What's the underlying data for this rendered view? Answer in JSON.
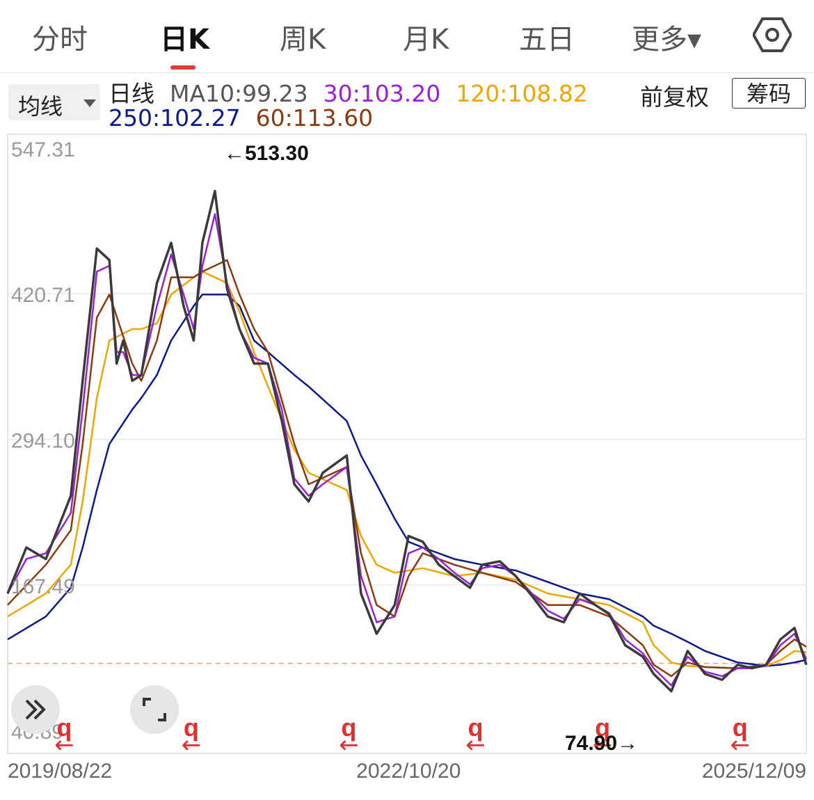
{
  "tabs": [
    {
      "label": "分时"
    },
    {
      "label": "日K"
    },
    {
      "label": "周K"
    },
    {
      "label": "月K"
    },
    {
      "label": "五日"
    },
    {
      "label": "更多▾"
    }
  ],
  "ma_selector": {
    "label": "均线"
  },
  "ma_legend": {
    "prefix": "日线",
    "ma10": "MA10:99.23",
    "ma30": "30:103.20",
    "ma120": "120:108.82",
    "ma250": "250:102.27",
    "ma60": "60:113.60"
  },
  "adjust_label": "前复权",
  "chips_button": "筹码",
  "colors": {
    "price": "#3a3a3a",
    "ma10": "#3a3a3a",
    "ma30": "#9b1fd6",
    "ma60": "#8b3a0f",
    "ma120": "#f0a500",
    "ma250": "#0a1a8a",
    "marker": "#e03030",
    "grid": "#e8e8e8"
  },
  "chart_data": {
    "type": "line",
    "y_ticks": [
      "547.31",
      "420.71",
      "294.10",
      "167.49",
      "40.89"
    ],
    "ylim": [
      40.89,
      547.31
    ],
    "x_ticks": [
      "2019/08/22",
      "2022/10/20",
      "2025/12/09"
    ],
    "xlim": [
      "2019/08/22",
      "2025/12/09"
    ],
    "annotations": {
      "high": "←513.30",
      "low": "74.90→"
    },
    "reference_line": 99.23,
    "marker_label": "q",
    "marker_arrow": "←",
    "marker_x": [
      "2020/02/01",
      "2021/02/01",
      "2022/05/01",
      "2023/05/01",
      "2024/05/01",
      "2025/06/01"
    ],
    "series": [
      {
        "name": "日线",
        "key": "price",
        "x": [
          "2019/08/22",
          "2019/10/15",
          "2019/12/10",
          "2020/02/20",
          "2020/03/25",
          "2020/05/05",
          "2020/06/10",
          "2020/07/01",
          "2020/07/20",
          "2020/08/15",
          "2020/09/10",
          "2020/10/25",
          "2020/12/05",
          "2021/01/10",
          "2021/02/08",
          "2021/03/05",
          "2021/04/10",
          "2021/05/15",
          "2021/06/20",
          "2021/08/01",
          "2021/09/10",
          "2021/10/20",
          "2021/11/25",
          "2022/01/05",
          "2022/02/15",
          "2022/04/25",
          "2022/06/05",
          "2022/07/20",
          "2022/09/10",
          "2022/10/20",
          "2022/11/30",
          "2023/01/15",
          "2023/03/01",
          "2023/04/15",
          "2023/05/20",
          "2023/07/10",
          "2023/08/25",
          "2023/10/10",
          "2023/11/25",
          "2024/01/10",
          "2024/02/25",
          "2024/04/10",
          "2024/05/20",
          "2024/07/05",
          "2024/08/25",
          "2024/09/25",
          "2024/11/15",
          "2025/01/01",
          "2025/02/20",
          "2025/04/10",
          "2025/05/25",
          "2025/07/05",
          "2025/08/15",
          "2025/09/25",
          "2025/11/05",
          "2025/12/09"
        ],
        "values": [
          160,
          200,
          190,
          245,
          345,
          460,
          450,
          360,
          380,
          345,
          350,
          430,
          465,
          410,
          380,
          465,
          510,
          425,
          390,
          360,
          360,
          310,
          255,
          240,
          265,
          280,
          160,
          125,
          150,
          210,
          205,
          185,
          175,
          165,
          185,
          188,
          175,
          158,
          140,
          135,
          160,
          150,
          142,
          115,
          105,
          90,
          75,
          110,
          90,
          85,
          98,
          95,
          98,
          120,
          130,
          98
        ]
      },
      {
        "name": "MA30",
        "key": "ma30",
        "x": [
          "2019/08/22",
          "2019/10/15",
          "2019/12/10",
          "2020/02/20",
          "2020/03/25",
          "2020/05/05",
          "2020/06/10",
          "2020/07/01",
          "2020/07/20",
          "2020/08/15",
          "2020/09/10",
          "2020/10/25",
          "2020/12/05",
          "2021/01/10",
          "2021/02/08",
          "2021/03/05",
          "2021/04/10",
          "2021/05/15",
          "2021/06/20",
          "2021/08/01",
          "2021/09/10",
          "2021/10/20",
          "2021/11/25",
          "2022/01/05",
          "2022/02/15",
          "2022/04/25",
          "2022/06/05",
          "2022/07/20",
          "2022/09/10",
          "2022/10/20",
          "2022/11/30",
          "2023/01/15",
          "2023/03/01",
          "2023/04/15",
          "2023/05/20",
          "2023/07/10",
          "2023/08/25",
          "2023/10/10",
          "2023/11/25",
          "2024/01/10",
          "2024/02/25",
          "2024/04/10",
          "2024/05/20",
          "2024/07/05",
          "2024/08/25",
          "2024/09/25",
          "2024/11/15",
          "2025/01/01",
          "2025/02/20",
          "2025/04/10",
          "2025/05/25",
          "2025/07/05",
          "2025/08/15",
          "2025/09/25",
          "2025/11/05",
          "2025/12/09"
        ],
        "values": [
          160,
          190,
          195,
          230,
          320,
          440,
          445,
          370,
          370,
          350,
          350,
          410,
          455,
          420,
          390,
          445,
          490,
          430,
          390,
          365,
          360,
          320,
          260,
          245,
          255,
          270,
          175,
          135,
          140,
          195,
          200,
          190,
          178,
          168,
          182,
          185,
          175,
          160,
          145,
          138,
          155,
          150,
          143,
          120,
          108,
          95,
          80,
          105,
          92,
          88,
          95,
          95,
          97,
          115,
          125,
          103
        ]
      },
      {
        "name": "MA60",
        "key": "ma60",
        "x": [
          "2019/08/22",
          "2019/12/10",
          "2020/02/20",
          "2020/03/25",
          "2020/05/05",
          "2020/06/10",
          "2020/08/15",
          "2020/09/10",
          "2020/10/25",
          "2020/12/05",
          "2021/02/08",
          "2021/03/05",
          "2021/05/15",
          "2021/06/20",
          "2021/08/01",
          "2021/09/10",
          "2021/11/25",
          "2022/01/05",
          "2022/04/25",
          "2022/06/05",
          "2022/07/20",
          "2022/09/10",
          "2022/10/20",
          "2022/11/30",
          "2023/03/01",
          "2023/05/20",
          "2023/08/25",
          "2023/11/25",
          "2024/02/25",
          "2024/05/20",
          "2024/08/25",
          "2024/09/25",
          "2024/11/15",
          "2025/01/01",
          "2025/02/20",
          "2025/05/25",
          "2025/08/15",
          "2025/09/25",
          "2025/11/05",
          "2025/12/09"
        ],
        "values": [
          150,
          185,
          215,
          290,
          400,
          420,
          360,
          345,
          380,
          435,
          435,
          440,
          450,
          420,
          390,
          370,
          290,
          255,
          270,
          195,
          150,
          140,
          175,
          195,
          185,
          178,
          170,
          150,
          150,
          140,
          115,
          98,
          88,
          100,
          96,
          95,
          98,
          110,
          120,
          113.6
        ]
      },
      {
        "name": "MA120",
        "key": "ma120",
        "x": [
          "2019/08/22",
          "2019/12/10",
          "2020/02/20",
          "2020/03/25",
          "2020/05/05",
          "2020/06/10",
          "2020/08/15",
          "2020/09/10",
          "2020/10/25",
          "2020/12/05",
          "2021/02/08",
          "2021/03/05",
          "2021/05/15",
          "2021/06/20",
          "2021/08/01",
          "2021/09/10",
          "2021/11/25",
          "2022/01/05",
          "2022/04/25",
          "2022/06/05",
          "2022/07/20",
          "2022/09/10",
          "2022/10/20",
          "2022/11/30",
          "2023/03/01",
          "2023/05/20",
          "2023/08/25",
          "2023/11/25",
          "2024/02/25",
          "2024/05/20",
          "2024/08/25",
          "2024/09/25",
          "2024/11/15",
          "2025/01/01",
          "2025/02/20",
          "2025/05/25",
          "2025/08/15",
          "2025/09/25",
          "2025/11/05",
          "2025/12/09"
        ],
        "values": [
          140,
          160,
          185,
          240,
          330,
          380,
          390,
          390,
          395,
          420,
          435,
          440,
          430,
          405,
          370,
          340,
          285,
          265,
          250,
          210,
          185,
          178,
          180,
          182,
          175,
          178,
          172,
          160,
          155,
          150,
          135,
          115,
          100,
          97,
          96,
          95,
          97,
          102,
          110,
          108.82
        ]
      },
      {
        "name": "MA250",
        "key": "ma250",
        "x": [
          "2019/08/22",
          "2019/12/10",
          "2020/02/20",
          "2020/03/25",
          "2020/05/05",
          "2020/06/10",
          "2020/08/15",
          "2020/09/10",
          "2020/10/25",
          "2020/12/05",
          "2021/02/08",
          "2021/03/05",
          "2021/05/15",
          "2021/06/20",
          "2021/08/01",
          "2021/09/10",
          "2021/11/25",
          "2022/01/05",
          "2022/04/25",
          "2022/06/05",
          "2022/07/20",
          "2022/09/10",
          "2022/10/20",
          "2022/11/30",
          "2023/03/01",
          "2023/05/20",
          "2023/08/25",
          "2023/11/25",
          "2024/02/25",
          "2024/05/20",
          "2024/08/25",
          "2024/09/25",
          "2024/11/15",
          "2025/01/01",
          "2025/02/20",
          "2025/05/25",
          "2025/08/15",
          "2025/09/25",
          "2025/11/05",
          "2025/12/09"
        ],
        "values": [
          120,
          140,
          165,
          200,
          250,
          290,
          320,
          330,
          350,
          380,
          410,
          420,
          420,
          410,
          380,
          370,
          350,
          340,
          310,
          280,
          255,
          225,
          205,
          200,
          190,
          185,
          180,
          170,
          160,
          155,
          140,
          132,
          125,
          118,
          110,
          100,
          97,
          98,
          100,
          102.27
        ]
      }
    ]
  },
  "side_buttons": {
    "collapse_icon": "double-chevron-right-icon",
    "expand_icon": "fullscreen-icon"
  }
}
